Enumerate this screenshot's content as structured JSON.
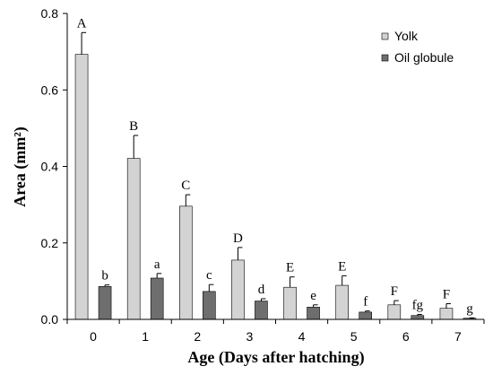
{
  "chart_data": {
    "type": "bar",
    "xlabel": "Age (Days after hatching)",
    "ylabel": "Area (mm²)",
    "ylim": [
      0,
      0.8
    ],
    "yticks": [
      0.0,
      0.2,
      0.4,
      0.6,
      0.8
    ],
    "ytick_labels": [
      "0.0",
      "0.2",
      "0.4",
      "0.6",
      "0.8"
    ],
    "categories": [
      "0",
      "1",
      "2",
      "3",
      "4",
      "5",
      "6",
      "7"
    ],
    "legend_position": "top-right",
    "grid": false,
    "series": [
      {
        "name": "Yolk",
        "color": "#d3d3d3",
        "values": [
          0.693,
          0.421,
          0.296,
          0.155,
          0.084,
          0.089,
          0.038,
          0.029
        ],
        "errors": [
          0.057,
          0.06,
          0.03,
          0.033,
          0.027,
          0.025,
          0.011,
          0.012
        ],
        "sig_labels": [
          "A",
          "B",
          "C",
          "D",
          "E",
          "E",
          "F",
          "F"
        ]
      },
      {
        "name": "Oil globule",
        "color": "#6e6e6e",
        "values": [
          0.086,
          0.108,
          0.073,
          0.048,
          0.032,
          0.019,
          0.01,
          0.003
        ],
        "errors": [
          0.004,
          0.012,
          0.018,
          0.006,
          0.006,
          0.003,
          0.003,
          0.001
        ],
        "sig_labels": [
          "b",
          "a",
          "c",
          "d",
          "e",
          "f",
          "fg",
          "g"
        ]
      }
    ]
  }
}
